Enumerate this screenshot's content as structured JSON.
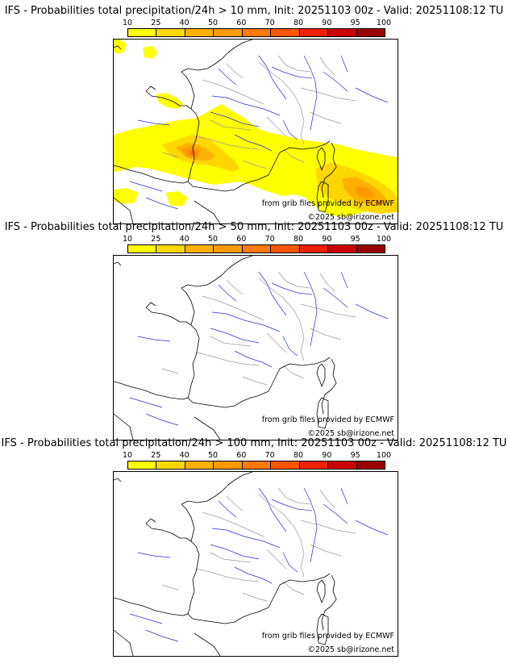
{
  "panels": [
    {
      "title": "IFS - Probabilities total precipitation/24h > 10 mm, Init: 20251103 00z - Valid: 20251108:12 TU",
      "threshold_mm": 10,
      "has_precip": true
    },
    {
      "title": "IFS - Probabilities total precipitation/24h > 50 mm, Init: 20251103 00z - Valid: 20251108:12 TU",
      "threshold_mm": 50,
      "has_precip": false
    },
    {
      "title": "IFS - Probabilities total precipitation/24h > 100 mm, Init: 20251103 00z - Valid: 20251108:12 TU",
      "threshold_mm": 100,
      "has_precip": false
    }
  ],
  "scale": {
    "labels": [
      "10",
      "25",
      "40",
      "50",
      "60",
      "70",
      "80",
      "90",
      "95",
      "100"
    ],
    "colors": [
      "#ffff00",
      "#ffd700",
      "#ffb000",
      "#ff9900",
      "#ff7a00",
      "#ff5500",
      "#ee2200",
      "#cc0000",
      "#990000",
      "#5a0000"
    ]
  },
  "credits": {
    "source": "from grib files provided by ECMWF",
    "copyright": "©2025 sb@irizone.net"
  },
  "colors": {
    "coast": "#000000",
    "rivers": "#2b2bd8",
    "borders": "#9a9a9a"
  }
}
